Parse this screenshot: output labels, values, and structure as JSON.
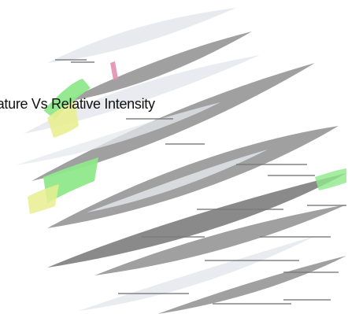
{
  "chart_data": {
    "type": "surface",
    "title": "rature Vs Relative Intensity",
    "xlabel": "",
    "ylabel": "",
    "colors": {
      "band": "#a0a0a0",
      "band_shadow": "#8a8a8a",
      "highlight": "#e6e8ee",
      "accent_green": "#8fe88a",
      "accent_yellow": "#e8ee90",
      "accent_pink": "#e090b0"
    }
  }
}
